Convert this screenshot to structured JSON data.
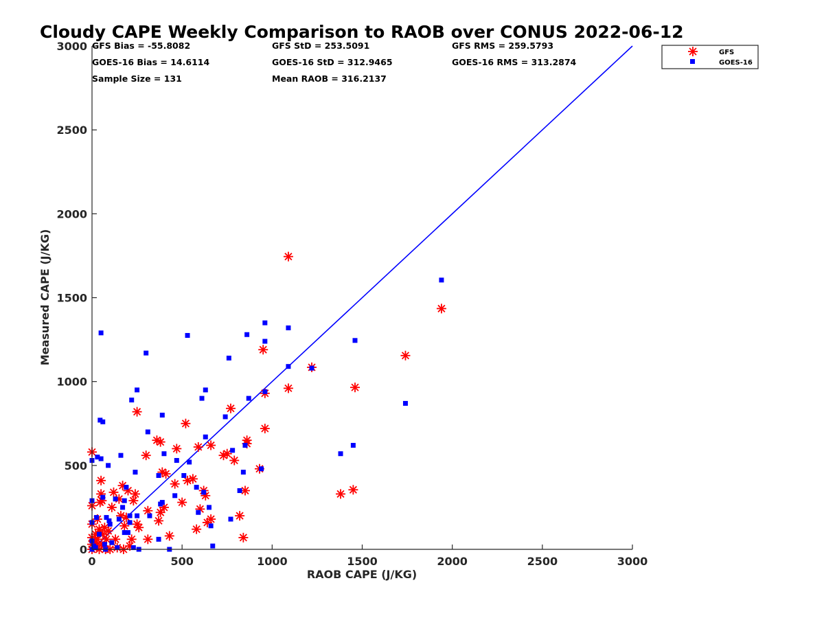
{
  "chart_data": {
    "type": "scatter",
    "title": "Cloudy CAPE Weekly Comparison to RAOB over CONUS 2022-06-12",
    "xlabel": "RAOB CAPE (J/KG)",
    "ylabel": "Measured CAPE (J/KG)",
    "xlim": [
      0,
      3000
    ],
    "ylim": [
      0,
      3000
    ],
    "xticks": [
      "0",
      "500",
      "1000",
      "1500",
      "2000",
      "2500",
      "3000"
    ],
    "yticks": [
      "0",
      "500",
      "1000",
      "1500",
      "2000",
      "2500",
      "3000"
    ],
    "grid": false,
    "legend_position": "top-right",
    "stats": [
      "GFS Bias = -55.8082",
      "GFS StD = 253.5091",
      "GFS RMS = 259.5793",
      "GOES-16 Bias = 14.6114",
      "GOES-16 StD = 312.9465",
      "GOES-16 RMS = 313.2874",
      "Sample Size = 131",
      "Mean RAOB = 316.2137"
    ],
    "reference_line": {
      "x": [
        0,
        3000
      ],
      "y": [
        0,
        3000
      ],
      "color": "#0000ff"
    },
    "series": [
      {
        "name": "GFS",
        "marker": "asterisk",
        "color": "#ff0000",
        "points": [
          [
            0,
            580
          ],
          [
            0,
            260
          ],
          [
            0,
            150
          ],
          [
            0,
            70
          ],
          [
            0,
            30
          ],
          [
            0,
            0
          ],
          [
            10,
            10
          ],
          [
            15,
            40
          ],
          [
            20,
            90
          ],
          [
            25,
            20
          ],
          [
            30,
            180
          ],
          [
            30,
            60
          ],
          [
            40,
            120
          ],
          [
            40,
            0
          ],
          [
            45,
            280
          ],
          [
            50,
            410
          ],
          [
            50,
            330
          ],
          [
            55,
            290
          ],
          [
            55,
            30
          ],
          [
            60,
            90
          ],
          [
            65,
            20
          ],
          [
            70,
            130
          ],
          [
            75,
            0
          ],
          [
            80,
            60
          ],
          [
            90,
            110
          ],
          [
            100,
            0
          ],
          [
            110,
            250
          ],
          [
            120,
            340
          ],
          [
            130,
            60
          ],
          [
            140,
            10
          ],
          [
            150,
            300
          ],
          [
            160,
            200
          ],
          [
            170,
            380
          ],
          [
            175,
            0
          ],
          [
            180,
            140
          ],
          [
            190,
            190
          ],
          [
            200,
            350
          ],
          [
            210,
            20
          ],
          [
            220,
            60
          ],
          [
            230,
            290
          ],
          [
            240,
            330
          ],
          [
            250,
            150
          ],
          [
            260,
            130
          ],
          [
            250,
            820
          ],
          [
            300,
            560
          ],
          [
            310,
            230
          ],
          [
            310,
            60
          ],
          [
            360,
            650
          ],
          [
            380,
            640
          ],
          [
            370,
            170
          ],
          [
            380,
            220
          ],
          [
            390,
            460
          ],
          [
            400,
            250
          ],
          [
            410,
            450
          ],
          [
            430,
            80
          ],
          [
            460,
            390
          ],
          [
            470,
            600
          ],
          [
            500,
            280
          ],
          [
            520,
            750
          ],
          [
            530,
            410
          ],
          [
            560,
            420
          ],
          [
            580,
            120
          ],
          [
            590,
            610
          ],
          [
            600,
            240
          ],
          [
            620,
            350
          ],
          [
            630,
            320
          ],
          [
            640,
            160
          ],
          [
            660,
            180
          ],
          [
            660,
            620
          ],
          [
            730,
            560
          ],
          [
            750,
            570
          ],
          [
            770,
            840
          ],
          [
            790,
            530
          ],
          [
            820,
            200
          ],
          [
            840,
            70
          ],
          [
            850,
            350
          ],
          [
            860,
            650
          ],
          [
            860,
            630
          ],
          [
            930,
            480
          ],
          [
            950,
            1190
          ],
          [
            960,
            930
          ],
          [
            960,
            720
          ],
          [
            1090,
            960
          ],
          [
            1090,
            1745
          ],
          [
            1220,
            1085
          ],
          [
            1380,
            330
          ],
          [
            1450,
            355
          ],
          [
            1460,
            965
          ],
          [
            1740,
            1155
          ],
          [
            1940,
            1435
          ]
        ]
      },
      {
        "name": "GOES-16",
        "marker": "square",
        "color": "#0000ff",
        "points": [
          [
            0,
            530
          ],
          [
            0,
            290
          ],
          [
            0,
            160
          ],
          [
            0,
            50
          ],
          [
            0,
            0
          ],
          [
            10,
            20
          ],
          [
            20,
            10
          ],
          [
            25,
            190
          ],
          [
            30,
            550
          ],
          [
            40,
            90
          ],
          [
            45,
            770
          ],
          [
            50,
            1290
          ],
          [
            50,
            540
          ],
          [
            60,
            760
          ],
          [
            60,
            310
          ],
          [
            70,
            30
          ],
          [
            75,
            0
          ],
          [
            80,
            190
          ],
          [
            90,
            500
          ],
          [
            95,
            170
          ],
          [
            100,
            150
          ],
          [
            110,
            40
          ],
          [
            130,
            300
          ],
          [
            140,
            10
          ],
          [
            150,
            180
          ],
          [
            160,
            560
          ],
          [
            170,
            250
          ],
          [
            180,
            290
          ],
          [
            180,
            100
          ],
          [
            190,
            370
          ],
          [
            200,
            100
          ],
          [
            210,
            160
          ],
          [
            210,
            200
          ],
          [
            220,
            890
          ],
          [
            230,
            10
          ],
          [
            240,
            460
          ],
          [
            250,
            200
          ],
          [
            250,
            950
          ],
          [
            260,
            0
          ],
          [
            300,
            1170
          ],
          [
            310,
            700
          ],
          [
            320,
            200
          ],
          [
            370,
            440
          ],
          [
            370,
            60
          ],
          [
            380,
            270
          ],
          [
            390,
            800
          ],
          [
            390,
            280
          ],
          [
            400,
            570
          ],
          [
            430,
            0
          ],
          [
            460,
            320
          ],
          [
            470,
            530
          ],
          [
            510,
            440
          ],
          [
            530,
            1275
          ],
          [
            540,
            520
          ],
          [
            580,
            370
          ],
          [
            590,
            220
          ],
          [
            610,
            900
          ],
          [
            620,
            340
          ],
          [
            630,
            950
          ],
          [
            630,
            670
          ],
          [
            650,
            250
          ],
          [
            660,
            140
          ],
          [
            670,
            20
          ],
          [
            740,
            790
          ],
          [
            760,
            1140
          ],
          [
            770,
            180
          ],
          [
            780,
            590
          ],
          [
            820,
            350
          ],
          [
            840,
            460
          ],
          [
            850,
            620
          ],
          [
            860,
            1280
          ],
          [
            870,
            900
          ],
          [
            940,
            480
          ],
          [
            960,
            1350
          ],
          [
            960,
            1240
          ],
          [
            960,
            940
          ],
          [
            1090,
            1320
          ],
          [
            1090,
            1090
          ],
          [
            1220,
            1080
          ],
          [
            1380,
            570
          ],
          [
            1450,
            620
          ],
          [
            1460,
            1245
          ],
          [
            1740,
            870
          ],
          [
            1940,
            1605
          ]
        ]
      }
    ]
  }
}
